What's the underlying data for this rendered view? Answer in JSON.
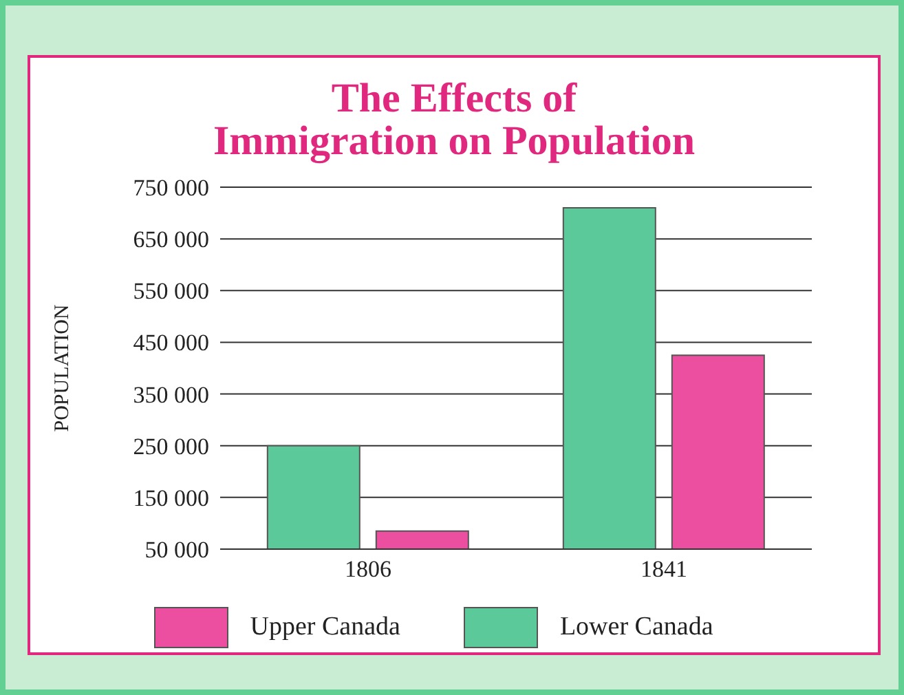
{
  "chart_data": {
    "type": "bar",
    "title": "The Effects of\nImmigration on Population",
    "ylabel": "POPULATION",
    "categories": [
      "1806",
      "1841"
    ],
    "series": [
      {
        "name": "Lower Canada",
        "color": "#5cc99b",
        "values": [
          250000,
          710000
        ]
      },
      {
        "name": "Upper Canada",
        "color": "#ec4f9f",
        "values": [
          85000,
          425000
        ]
      }
    ],
    "ylim": [
      50000,
      750000
    ],
    "yticks": [
      {
        "value": 50000,
        "label": "50 000"
      },
      {
        "value": 150000,
        "label": "150 000"
      },
      {
        "value": 250000,
        "label": "250 000"
      },
      {
        "value": 350000,
        "label": "350 000"
      },
      {
        "value": 450000,
        "label": "450 000"
      },
      {
        "value": 550000,
        "label": "550 000"
      },
      {
        "value": 650000,
        "label": "650 000"
      },
      {
        "value": 750000,
        "label": "750 000"
      }
    ],
    "grid": "y",
    "legend": "bottom"
  }
}
